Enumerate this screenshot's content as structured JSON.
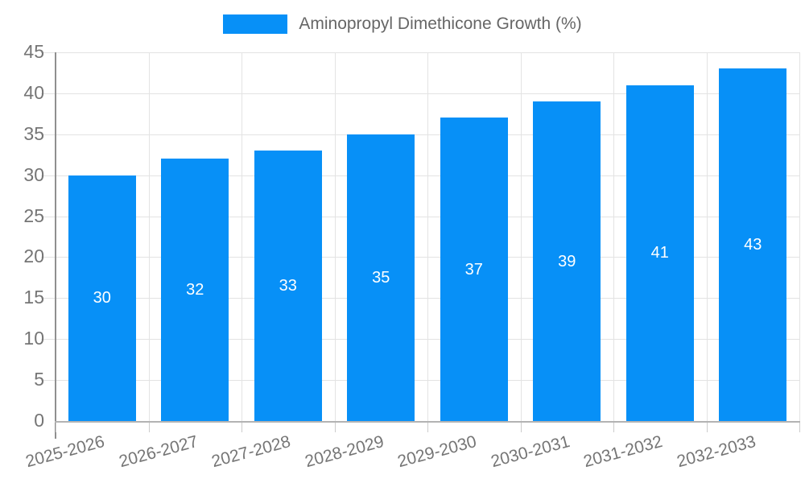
{
  "chart_data": {
    "type": "bar",
    "title": "",
    "legend": "Aminopropyl Dimethicone Growth (%)",
    "legend_position": "top-center",
    "categories": [
      "2025-2026",
      "2026-2027",
      "2027-2028",
      "2028-2029",
      "2029-2030",
      "2030-2031",
      "2031-2032",
      "2032-2033"
    ],
    "values": [
      30,
      32,
      33,
      35,
      37,
      39,
      41,
      43
    ],
    "xlabel": "",
    "ylabel": "",
    "ylim": [
      0,
      45
    ],
    "ytick_step": 5,
    "yticks": [
      0,
      5,
      10,
      15,
      20,
      25,
      30,
      35,
      40,
      45
    ],
    "grid": true,
    "x_label_rotation_deg": -15,
    "value_labels_inside_bars": true,
    "colors": {
      "bar": "#0790f7",
      "value_label": "#ffffff",
      "grid_line": "#e3e3e3",
      "x_axis_line": "#b3b3b3",
      "y_axis_line": "#8f8f8f",
      "tick_mark": "#cccccc",
      "tick_text": "#757575",
      "legend_text": "#666666",
      "background": "#ffffff"
    }
  }
}
